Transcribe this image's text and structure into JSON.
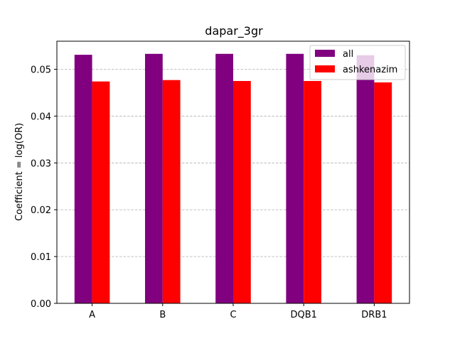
{
  "chart_data": {
    "type": "bar",
    "title": "dapar_3gr",
    "xlabel": "",
    "ylabel": "Coefficient = log(OR)",
    "categories": [
      "A",
      "B",
      "C",
      "DQB1",
      "DRB1"
    ],
    "series": [
      {
        "name": "all",
        "color": "#800080",
        "values": [
          0.0531,
          0.0533,
          0.0533,
          0.0533,
          0.053
        ]
      },
      {
        "name": "ashkenazim",
        "color": "#ff0000",
        "values": [
          0.0474,
          0.0477,
          0.0475,
          0.0475,
          0.0472
        ]
      }
    ],
    "ylim": [
      0.0,
      0.056
    ],
    "yticks": [
      "0.00",
      "0.01",
      "0.02",
      "0.03",
      "0.04",
      "0.05"
    ],
    "grid": "y-dashed",
    "legend_position": "top-right"
  }
}
